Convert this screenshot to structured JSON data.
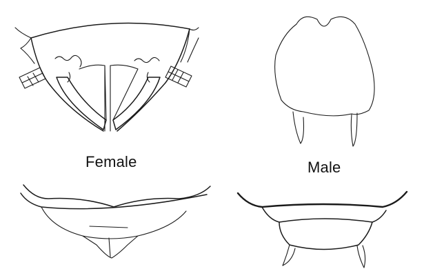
{
  "labels": {
    "female": "Female",
    "male": "Male"
  },
  "colors": {
    "ink": "#1a1a1a",
    "background": "#ffffff"
  }
}
